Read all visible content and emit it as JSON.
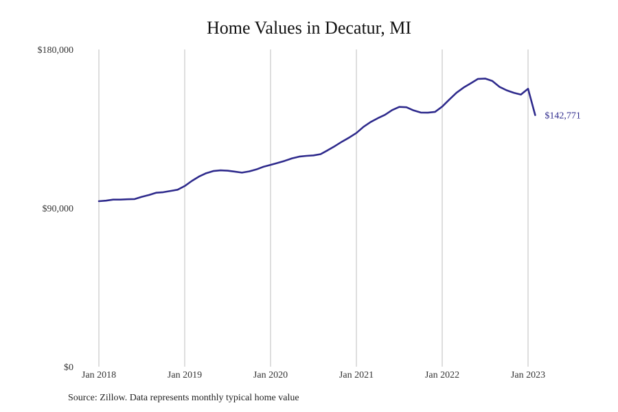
{
  "chart_data": {
    "type": "line",
    "title": "Home Values in Decatur, MI",
    "source": "Source: Zillow. Data represents monthly typical home value",
    "xlabel": "",
    "ylabel": "",
    "ylim": [
      0,
      180000
    ],
    "xlim": [
      "2018-01",
      "2023-02"
    ],
    "y_ticks": [
      {
        "value": 0,
        "label": "$0"
      },
      {
        "value": 90000,
        "label": "$90,000"
      },
      {
        "value": 180000,
        "label": "$180,000"
      }
    ],
    "x_ticks": [
      {
        "value": "2018-01",
        "label": "Jan 2018"
      },
      {
        "value": "2019-01",
        "label": "Jan 2019"
      },
      {
        "value": "2020-01",
        "label": "Jan 2020"
      },
      {
        "value": "2021-01",
        "label": "Jan 2021"
      },
      {
        "value": "2022-01",
        "label": "Jan 2022"
      },
      {
        "value": "2023-01",
        "label": "Jan 2023"
      }
    ],
    "grid": "vertical",
    "line_color": "#2e2a8c",
    "end_label": "$142,771",
    "series": [
      {
        "x": [
          "2018-01",
          "2018-02",
          "2018-03",
          "2018-04",
          "2018-05",
          "2018-06",
          "2018-07",
          "2018-08",
          "2018-09",
          "2018-10",
          "2018-11",
          "2018-12",
          "2019-01",
          "2019-02",
          "2019-03",
          "2019-04",
          "2019-05",
          "2019-06",
          "2019-07",
          "2019-08",
          "2019-09",
          "2019-10",
          "2019-11",
          "2019-12",
          "2020-01",
          "2020-02",
          "2020-03",
          "2020-04",
          "2020-05",
          "2020-06",
          "2020-07",
          "2020-08",
          "2020-09",
          "2020-10",
          "2020-11",
          "2020-12",
          "2021-01",
          "2021-02",
          "2021-03",
          "2021-04",
          "2021-05",
          "2021-06",
          "2021-07",
          "2021-08",
          "2021-09",
          "2021-10",
          "2021-11",
          "2021-12",
          "2022-01",
          "2022-02",
          "2022-03",
          "2022-04",
          "2022-05",
          "2022-06",
          "2022-07",
          "2022-08",
          "2022-09",
          "2022-10",
          "2022-11",
          "2022-12",
          "2023-01",
          "2023-02"
        ],
        "values": [
          93900,
          94200,
          94800,
          94800,
          95000,
          95100,
          96400,
          97400,
          98700,
          99000,
          99700,
          100400,
          102500,
          105400,
          107900,
          109800,
          111000,
          111400,
          111200,
          110700,
          110100,
          110800,
          111900,
          113400,
          114500,
          115600,
          116800,
          118200,
          119200,
          119600,
          119900,
          120600,
          122800,
          125200,
          127700,
          130000,
          132600,
          136100,
          138800,
          141000,
          142900,
          145600,
          147400,
          147200,
          145400,
          144200,
          144100,
          144600,
          147600,
          151600,
          155400,
          158400,
          160800,
          163300,
          163500,
          162100,
          158800,
          156800,
          155400,
          154400,
          157700,
          142771
        ]
      }
    ]
  }
}
